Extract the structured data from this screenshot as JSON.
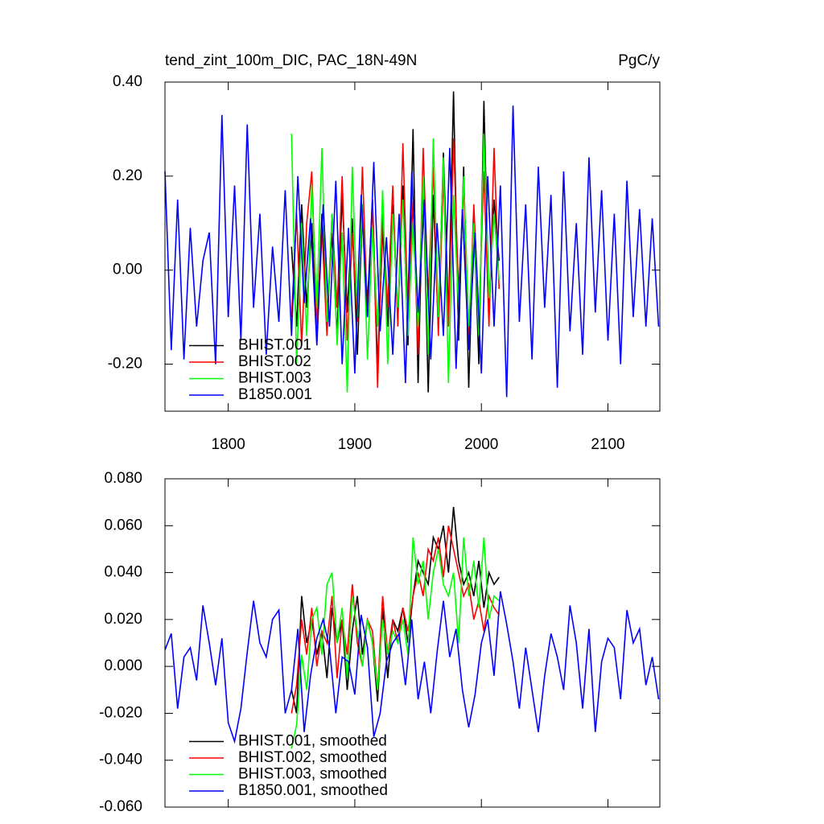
{
  "chart_data": [
    {
      "type": "line",
      "title": "tend_zint_100m_DIC, PAC_18N-49N",
      "units": "PgC/y",
      "xlim": [
        1750,
        2141
      ],
      "ylim": [
        -0.3,
        0.4
      ],
      "xticks": [
        1800,
        1900,
        2000,
        2100
      ],
      "yticks": [
        {
          "value": 0.4,
          "label": "0.40"
        },
        {
          "value": 0.2,
          "label": "0.20"
        },
        {
          "value": 0,
          "label": "0.00"
        },
        {
          "value": -0.2,
          "label": "-0.20"
        }
      ],
      "legend": "lower left",
      "series": [
        {
          "name": "BHIST.001",
          "color": "#000000",
          "x": [
            1850,
            1854,
            1858,
            1862,
            1866,
            1870,
            1874,
            1878,
            1882,
            1886,
            1890,
            1894,
            1898,
            1902,
            1906,
            1910,
            1914,
            1918,
            1922,
            1926,
            1930,
            1934,
            1938,
            1942,
            1946,
            1950,
            1954,
            1958,
            1962,
            1966,
            1970,
            1974,
            1978,
            1982,
            1986,
            1990,
            1994,
            1998,
            2002,
            2006,
            2010,
            2014
          ],
          "values": [
            0.05,
            -0.12,
            0.14,
            -0.08,
            0.1,
            -0.15,
            0.12,
            -0.1,
            0.08,
            -0.14,
            0.16,
            -0.09,
            0.11,
            -0.18,
            0.13,
            -0.07,
            0.15,
            -0.21,
            0.09,
            -0.12,
            0.14,
            -0.1,
            0.18,
            -0.16,
            0.3,
            -0.24,
            0.2,
            -0.26,
            0.16,
            -0.12,
            0.25,
            -0.1,
            0.38,
            -0.15,
            0.22,
            -0.25,
            0.12,
            -0.2,
            0.36,
            -0.08,
            0.15,
            0.02
          ]
        },
        {
          "name": "BHIST.002",
          "color": "#ff0000",
          "x": [
            1850,
            1854,
            1858,
            1862,
            1866,
            1870,
            1874,
            1878,
            1882,
            1886,
            1890,
            1894,
            1898,
            1902,
            1906,
            1910,
            1914,
            1918,
            1922,
            1926,
            1930,
            1934,
            1938,
            1942,
            1946,
            1950,
            1954,
            1958,
            1962,
            1966,
            1970,
            1974,
            1978,
            1982,
            1986,
            1990,
            1994,
            1998,
            2002,
            2006,
            2010,
            2014
          ],
          "values": [
            -0.1,
            0.12,
            -0.16,
            0.1,
            0.21,
            -0.12,
            0.09,
            -0.14,
            0.12,
            -0.08,
            0.2,
            -0.15,
            0.08,
            -0.11,
            0.22,
            -0.1,
            0.14,
            -0.25,
            0.12,
            -0.08,
            0.18,
            -0.12,
            0.27,
            -0.1,
            0.15,
            -0.18,
            0.26,
            -0.06,
            0.22,
            -0.14,
            0.2,
            -0.12,
            0.28,
            -0.05,
            0.18,
            -0.16,
            0.14,
            -0.1,
            0.21,
            -0.12,
            0.26,
            -0.04
          ]
        },
        {
          "name": "BHIST.003",
          "color": "#00ff00",
          "x": [
            1850,
            1854,
            1858,
            1862,
            1866,
            1870,
            1874,
            1878,
            1882,
            1886,
            1890,
            1894,
            1898,
            1902,
            1906,
            1910,
            1914,
            1918,
            1922,
            1926,
            1930,
            1934,
            1938,
            1942,
            1946,
            1950,
            1954,
            1958,
            1962,
            1966,
            1970,
            1974,
            1978,
            1982,
            1986,
            1990,
            1994,
            1998,
            2002,
            2006,
            2010,
            2014
          ],
          "values": [
            0.29,
            -0.2,
            0.1,
            -0.14,
            0.18,
            -0.08,
            0.26,
            -0.11,
            0.12,
            -0.16,
            0.08,
            -0.26,
            0.22,
            -0.1,
            0.14,
            -0.19,
            0.09,
            -0.12,
            0.17,
            -0.2,
            0.12,
            -0.08,
            0.15,
            -0.14,
            0.1,
            -0.12,
            0.2,
            -0.18,
            0.28,
            -0.1,
            0.24,
            -0.24,
            0.16,
            -0.08,
            0.2,
            -0.12,
            0.1,
            -0.14,
            0.29,
            -0.06,
            0.12,
            -0.02
          ]
        },
        {
          "name": "B1850.001",
          "color": "#0000ff",
          "x": [
            1750,
            1755,
            1760,
            1765,
            1770,
            1775,
            1780,
            1785,
            1790,
            1795,
            1800,
            1805,
            1810,
            1815,
            1820,
            1825,
            1830,
            1835,
            1840,
            1845,
            1850,
            1855,
            1860,
            1865,
            1870,
            1875,
            1880,
            1885,
            1890,
            1895,
            1900,
            1905,
            1910,
            1915,
            1920,
            1925,
            1930,
            1935,
            1940,
            1945,
            1950,
            1955,
            1960,
            1965,
            1970,
            1975,
            1980,
            1985,
            1990,
            1995,
            2000,
            2005,
            2010,
            2015,
            2020,
            2025,
            2030,
            2035,
            2040,
            2045,
            2050,
            2055,
            2060,
            2065,
            2070,
            2075,
            2080,
            2085,
            2090,
            2095,
            2100,
            2105,
            2110,
            2115,
            2120,
            2125,
            2130,
            2135,
            2140
          ],
          "values": [
            0.21,
            -0.17,
            0.15,
            -0.19,
            0.09,
            -0.12,
            0.02,
            0.08,
            -0.2,
            0.33,
            -0.1,
            0.18,
            -0.15,
            0.31,
            -0.08,
            0.12,
            -0.18,
            0.05,
            -0.11,
            0.17,
            -0.14,
            0.2,
            -0.07,
            0.11,
            -0.16,
            0.14,
            -0.12,
            0.19,
            -0.2,
            0.09,
            -0.22,
            0.16,
            -0.1,
            0.23,
            -0.13,
            0.07,
            -0.18,
            0.12,
            -0.24,
            0.21,
            -0.09,
            0.15,
            -0.19,
            0.1,
            -0.14,
            0.26,
            -0.21,
            0.13,
            -0.17,
            0.08,
            -0.22,
            0.2,
            -0.12,
            0.18,
            -0.27,
            0.35,
            -0.11,
            0.14,
            -0.19,
            0.22,
            -0.08,
            0.16,
            -0.25,
            0.21,
            -0.13,
            0.1,
            -0.18,
            0.24,
            -0.09,
            0.17,
            -0.15,
            0.12,
            -0.2,
            0.19,
            -0.1,
            0.13,
            -0.12,
            0.11,
            -0.12
          ]
        }
      ]
    },
    {
      "type": "line",
      "xlim": [
        1750,
        2141
      ],
      "ylim": [
        -0.06,
        0.08
      ],
      "xticks": [
        {
          "value": 1800,
          "label": null
        },
        {
          "value": 1900,
          "label": null
        },
        {
          "value": 2000,
          "label": null
        },
        {
          "value": 2100,
          "label": null
        }
      ],
      "yticks": [
        {
          "value": 0.08,
          "label": "0.080"
        },
        {
          "value": 0.06,
          "label": "0.060"
        },
        {
          "value": 0.04,
          "label": "0.040"
        },
        {
          "value": 0.02,
          "label": "0.020"
        },
        {
          "value": 0,
          "label": "0.000"
        },
        {
          "value": -0.02,
          "label": "-0.020"
        },
        {
          "value": -0.04,
          "label": "-0.040"
        },
        {
          "value": -0.06,
          "label": "-0.060"
        }
      ],
      "legend": "lower left",
      "series": [
        {
          "name": "BHIST.001, smoothed",
          "color": "#000000",
          "x": [
            1850,
            1854,
            1858,
            1862,
            1866,
            1870,
            1874,
            1878,
            1882,
            1886,
            1890,
            1894,
            1898,
            1902,
            1906,
            1910,
            1914,
            1918,
            1922,
            1926,
            1930,
            1934,
            1938,
            1942,
            1946,
            1950,
            1954,
            1958,
            1962,
            1966,
            1970,
            1974,
            1978,
            1982,
            1986,
            1990,
            1994,
            1998,
            2002,
            2006,
            2010,
            2014
          ],
          "values": [
            -0.01,
            -0.02,
            0.03,
            0.01,
            0.02,
            0.005,
            0.015,
            -0.005,
            0.025,
            0.01,
            0.02,
            -0.01,
            0.015,
            0.03,
            0.005,
            0.02,
            0.01,
            -0.015,
            0.025,
            -0.005,
            0.02,
            0.015,
            0.025,
            0.01,
            0.03,
            0.045,
            0.04,
            0.035,
            0.055,
            0.05,
            0.06,
            0.04,
            0.068,
            0.045,
            0.035,
            0.04,
            0.03,
            0.045,
            0.025,
            0.04,
            0.035,
            0.038
          ]
        },
        {
          "name": "BHIST.002, smoothed",
          "color": "#ff0000",
          "x": [
            1850,
            1854,
            1858,
            1862,
            1866,
            1870,
            1874,
            1878,
            1882,
            1886,
            1890,
            1894,
            1898,
            1902,
            1906,
            1910,
            1914,
            1918,
            1922,
            1926,
            1930,
            1934,
            1938,
            1942,
            1946,
            1950,
            1954,
            1958,
            1962,
            1966,
            1970,
            1974,
            1978,
            1982,
            1986,
            1990,
            1994,
            1998,
            2002,
            2006,
            2010,
            2014
          ],
          "values": [
            -0.02,
            -0.008,
            0.02,
            0.005,
            0.025,
            0.0,
            0.015,
            0.01,
            0.03,
            -0.005,
            0.02,
            0.005,
            0.035,
            0.01,
            0.0,
            0.02,
            0.015,
            -0.01,
            0.03,
            0.005,
            0.02,
            0.01,
            0.025,
            0.015,
            0.03,
            0.04,
            0.03,
            0.05,
            0.045,
            0.055,
            0.038,
            0.06,
            0.05,
            0.04,
            0.03,
            0.035,
            0.02,
            0.028,
            0.015,
            0.03,
            0.025,
            0.022
          ]
        },
        {
          "name": "BHIST.003, smoothed",
          "color": "#00ff00",
          "x": [
            1850,
            1854,
            1858,
            1862,
            1866,
            1870,
            1874,
            1878,
            1882,
            1886,
            1890,
            1894,
            1898,
            1902,
            1906,
            1910,
            1914,
            1918,
            1922,
            1926,
            1930,
            1934,
            1938,
            1942,
            1946,
            1950,
            1954,
            1958,
            1962,
            1966,
            1970,
            1974,
            1978,
            1982,
            1986,
            1990,
            1994,
            1998,
            2002,
            2006,
            2010,
            2014
          ],
          "values": [
            -0.035,
            -0.025,
            0.005,
            -0.01,
            0.02,
            0.025,
            0.005,
            0.035,
            0.04,
            0.01,
            0.025,
            -0.005,
            0.03,
            0.015,
            0.0,
            0.02,
            0.01,
            -0.01,
            0.02,
            0.005,
            0.015,
            0.01,
            0.02,
            0.005,
            0.055,
            0.035,
            0.045,
            0.02,
            0.04,
            0.05,
            0.035,
            0.03,
            0.04,
            0.01,
            0.055,
            0.03,
            0.045,
            0.025,
            0.055,
            0.02,
            0.03,
            0.028
          ]
        },
        {
          "name": "B1850.001, smoothed",
          "color": "#0000ff",
          "x": [
            1750,
            1755,
            1760,
            1765,
            1770,
            1775,
            1780,
            1785,
            1790,
            1795,
            1800,
            1805,
            1810,
            1815,
            1820,
            1825,
            1830,
            1835,
            1840,
            1845,
            1850,
            1855,
            1860,
            1865,
            1870,
            1875,
            1880,
            1885,
            1890,
            1895,
            1900,
            1905,
            1910,
            1915,
            1920,
            1925,
            1930,
            1935,
            1940,
            1945,
            1950,
            1955,
            1960,
            1965,
            1970,
            1975,
            1980,
            1985,
            1990,
            1995,
            2000,
            2005,
            2010,
            2015,
            2020,
            2025,
            2030,
            2035,
            2040,
            2045,
            2050,
            2055,
            2060,
            2065,
            2070,
            2075,
            2080,
            2085,
            2090,
            2095,
            2100,
            2105,
            2110,
            2115,
            2120,
            2125,
            2130,
            2135,
            2140
          ],
          "values": [
            0.007,
            0.014,
            -0.018,
            0.004,
            0.008,
            -0.006,
            0.026,
            0.01,
            -0.008,
            0.012,
            -0.024,
            -0.032,
            -0.018,
            0.006,
            0.028,
            0.01,
            0.004,
            0.02,
            0.024,
            -0.02,
            -0.01,
            0.016,
            -0.028,
            -0.004,
            0.012,
            0.02,
            0.008,
            -0.02,
            0.004,
            0.002,
            -0.012,
            0.022,
            0.008,
            -0.03,
            -0.02,
            0.002,
            0.01,
            0.014,
            -0.008,
            0.02,
            -0.014,
            0.002,
            -0.02,
            0.006,
            0.028,
            0.004,
            0.016,
            -0.01,
            -0.026,
            -0.012,
            0.01,
            0.02,
            -0.004,
            0.032,
            0.018,
            0.002,
            -0.018,
            0.008,
            -0.01,
            -0.028,
            -0.004,
            0.014,
            0.004,
            -0.01,
            0.026,
            0.01,
            -0.018,
            0.016,
            -0.028,
            0.002,
            0.012,
            0.008,
            -0.014,
            0.024,
            0.01,
            0.016,
            -0.008,
            0.004,
            -0.014
          ]
        }
      ]
    }
  ]
}
